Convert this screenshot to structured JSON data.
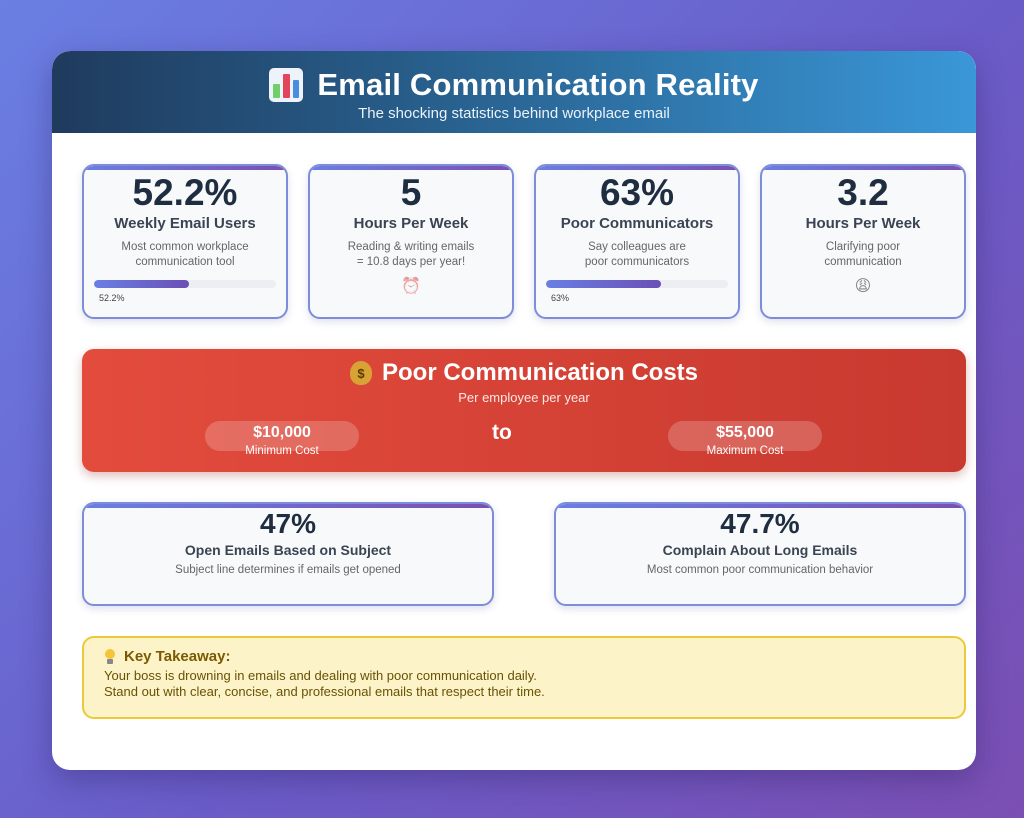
{
  "header": {
    "title": "Email Communication Reality",
    "subtitle": "The shocking statistics behind workplace email",
    "icon": "bar-chart-icon"
  },
  "stats": [
    {
      "value": "52.2%",
      "label": "Weekly Email Users",
      "desc1": "Most common workplace",
      "desc2": "communication tool",
      "bar_label": "52.2%",
      "bar_fraction": 0.522
    },
    {
      "value": "5",
      "label": "Hours Per Week",
      "desc1": "Reading & writing emails",
      "desc2": "= 10.8 days per year!",
      "icon": "alarm-clock-icon"
    },
    {
      "value": "63%",
      "label": "Poor Communicators",
      "desc1": "Say colleagues are",
      "desc2": "poor communicators",
      "bar_label": "63%",
      "bar_fraction": 0.63
    },
    {
      "value": "3.2",
      "label": "Hours Per Week",
      "desc1": "Clarifying poor",
      "desc2": "communication",
      "icon": "tired-face-icon"
    }
  ],
  "cost": {
    "title": "Poor Communication Costs",
    "subtitle": "Per employee per year",
    "icon": "money-bag-icon",
    "min_value": "$10,000",
    "min_label": "Minimum Cost",
    "connector": "to",
    "max_value": "$55,000",
    "max_label": "Maximum Cost"
  },
  "wide_stats": [
    {
      "value": "47%",
      "label": "Open Emails Based on Subject",
      "desc": "Subject line determines if emails get opened"
    },
    {
      "value": "47.7%",
      "label": "Complain About Long Emails",
      "desc": "Most common poor communication behavior"
    }
  ],
  "takeaway": {
    "title": "Key Takeaway:",
    "icon": "light-bulb-icon",
    "line1": "Your boss is drowning in emails and dealing with poor communication daily.",
    "line2": "Stand out with clear, concise, and professional emails that respect their time."
  },
  "colors": {
    "accent": "#6a7fe3",
    "cost_red": "#e34c3d",
    "takeaway_bg": "#fcf3c9"
  }
}
